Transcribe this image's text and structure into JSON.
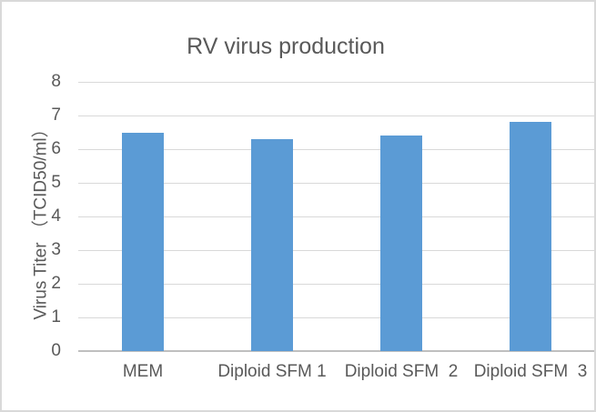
{
  "chart_data": {
    "type": "bar",
    "title": "RV virus production",
    "categories": [
      "MEM",
      "Diploid SFM 1",
      "Diploid SFM  2",
      "Diploid SFM  3"
    ],
    "values": [
      6.5,
      6.3,
      6.4,
      6.8
    ],
    "xlabel": "",
    "ylabel": "Virus Titer （TCID50/ml）",
    "ylim": [
      0,
      8
    ],
    "ytick_step": 1,
    "ytick_labels": [
      "0",
      "1",
      "2",
      "3",
      "4",
      "5",
      "6",
      "7",
      "8"
    ],
    "grid": true,
    "legend_position": "none",
    "colors": {
      "bar": "#5b9bd5",
      "gridline": "#d9d9d9",
      "axis_line": "#bfbfbf",
      "text": "#595959",
      "frame_border": "#d9d9d9",
      "background": "#ffffff"
    }
  }
}
